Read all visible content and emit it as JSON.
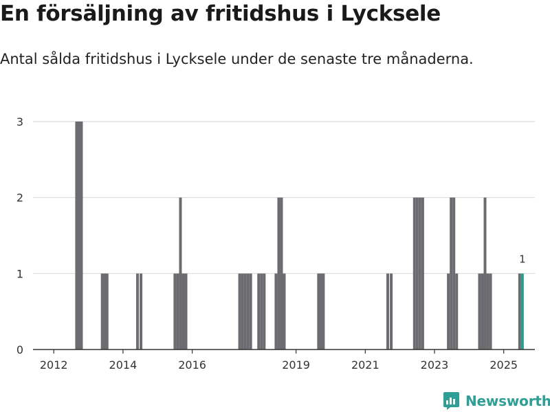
{
  "header": {
    "title": "En försäljning av fritidshus i Lycksele",
    "subtitle": "Antal sålda fritidshus i Lycksele under de senaste tre månaderna."
  },
  "brand": {
    "name": "Newsworthy"
  },
  "colors": {
    "bar": "#6c6c70",
    "highlight": "#2a9d8f",
    "grid": "#d9d9d9",
    "axis": "#333333",
    "brand": "#2f9e95"
  },
  "chart_data": {
    "type": "bar",
    "title": "En försäljning av fritidshus i Lycksele",
    "subtitle": "Antal sålda fritidshus i Lycksele under de senaste tre månaderna.",
    "xlabel": "",
    "ylabel": "",
    "ylim": [
      0,
      3
    ],
    "yticks": [
      0,
      1,
      2,
      3
    ],
    "xlim": [
      2011.4,
      2025.9
    ],
    "xticks": [
      {
        "value": 2012.0,
        "label": "2012"
      },
      {
        "value": 2014.0,
        "label": "2014"
      },
      {
        "value": 2016.0,
        "label": "2016"
      },
      {
        "value": 2019.0,
        "label": "2019"
      },
      {
        "value": 2021.0,
        "label": "2021"
      },
      {
        "value": 2023.0,
        "label": "2023"
      },
      {
        "value": 2025.0,
        "label": "2025"
      }
    ],
    "points": [
      {
        "x": 2012.66,
        "value": 3
      },
      {
        "x": 2012.73,
        "value": 3
      },
      {
        "x": 2012.8,
        "value": 3
      },
      {
        "x": 2013.4,
        "value": 1
      },
      {
        "x": 2013.47,
        "value": 1
      },
      {
        "x": 2013.54,
        "value": 1
      },
      {
        "x": 2014.42,
        "value": 1
      },
      {
        "x": 2014.52,
        "value": 1
      },
      {
        "x": 2015.5,
        "value": 1
      },
      {
        "x": 2015.58,
        "value": 1
      },
      {
        "x": 2015.66,
        "value": 2
      },
      {
        "x": 2015.74,
        "value": 1
      },
      {
        "x": 2015.82,
        "value": 1
      },
      {
        "x": 2017.37,
        "value": 1
      },
      {
        "x": 2017.45,
        "value": 1
      },
      {
        "x": 2017.53,
        "value": 1
      },
      {
        "x": 2017.61,
        "value": 1
      },
      {
        "x": 2017.69,
        "value": 1
      },
      {
        "x": 2017.92,
        "value": 1
      },
      {
        "x": 2018.0,
        "value": 1
      },
      {
        "x": 2018.08,
        "value": 1
      },
      {
        "x": 2018.42,
        "value": 1
      },
      {
        "x": 2018.5,
        "value": 2
      },
      {
        "x": 2018.58,
        "value": 2
      },
      {
        "x": 2018.66,
        "value": 1
      },
      {
        "x": 2019.65,
        "value": 1
      },
      {
        "x": 2019.72,
        "value": 1
      },
      {
        "x": 2019.79,
        "value": 1
      },
      {
        "x": 2021.65,
        "value": 1
      },
      {
        "x": 2021.75,
        "value": 1
      },
      {
        "x": 2022.42,
        "value": 2
      },
      {
        "x": 2022.5,
        "value": 2
      },
      {
        "x": 2022.58,
        "value": 2
      },
      {
        "x": 2022.66,
        "value": 2
      },
      {
        "x": 2023.4,
        "value": 1
      },
      {
        "x": 2023.48,
        "value": 2
      },
      {
        "x": 2023.56,
        "value": 2
      },
      {
        "x": 2023.64,
        "value": 1
      },
      {
        "x": 2024.3,
        "value": 1
      },
      {
        "x": 2024.38,
        "value": 1
      },
      {
        "x": 2024.46,
        "value": 2
      },
      {
        "x": 2024.54,
        "value": 1
      },
      {
        "x": 2024.62,
        "value": 1
      },
      {
        "x": 2025.46,
        "value": 1
      },
      {
        "x": 2025.54,
        "value": 1,
        "highlight": true,
        "label": "1"
      }
    ]
  }
}
